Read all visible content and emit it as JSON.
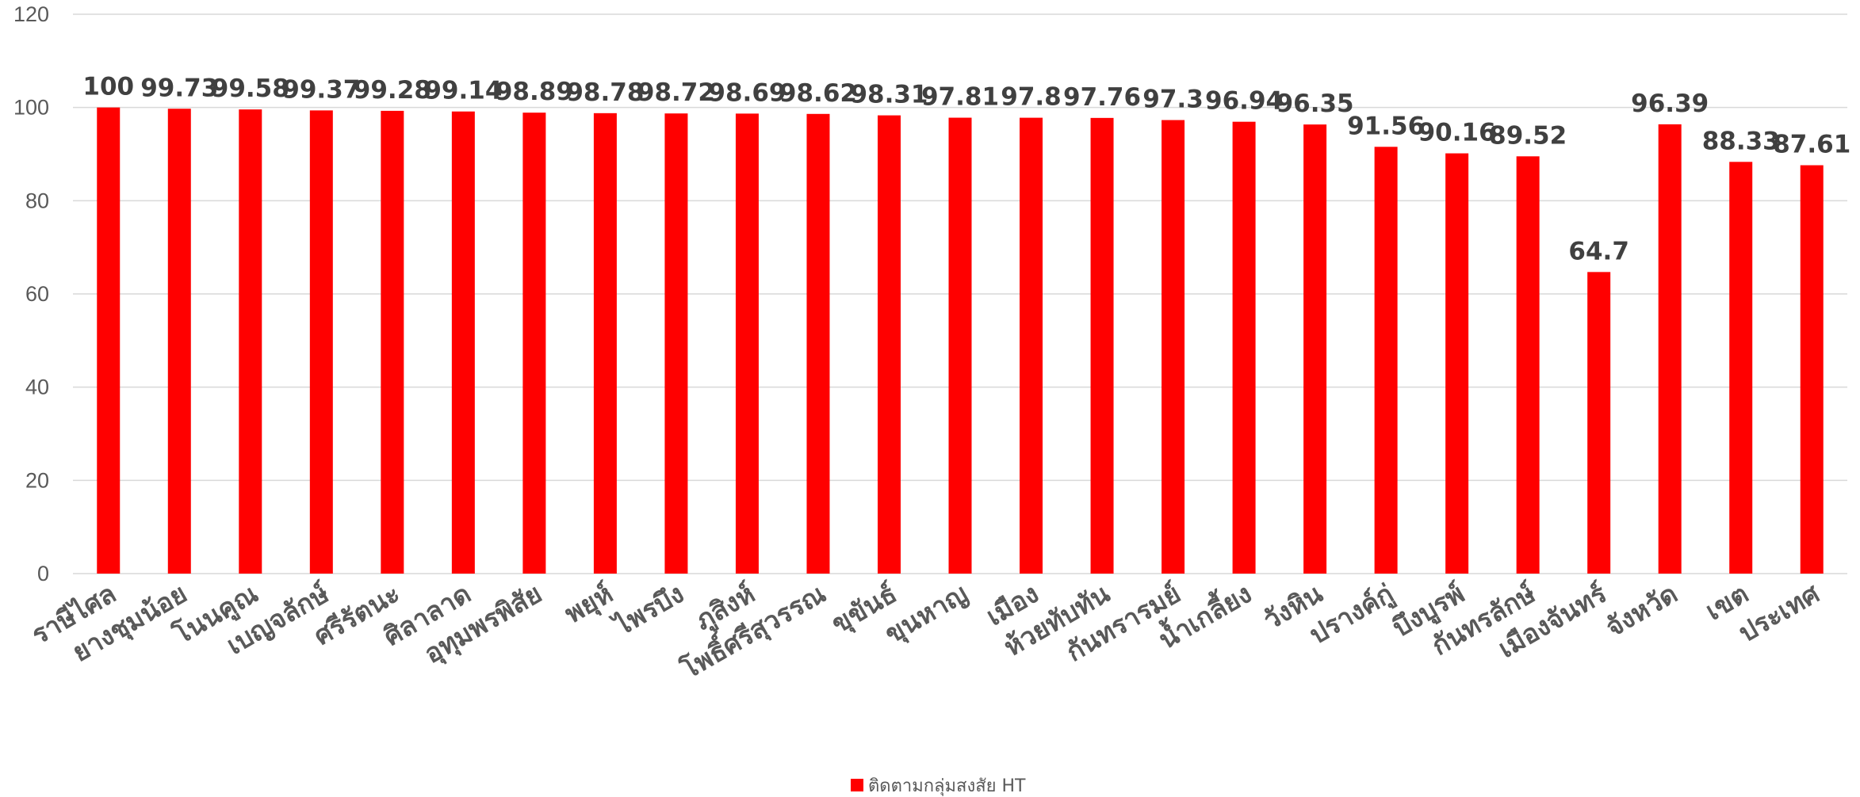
{
  "chart_data": {
    "type": "bar",
    "title": "",
    "xlabel": "",
    "ylabel": "",
    "ylim": [
      0,
      120
    ],
    "y_ticks": [
      0,
      20,
      40,
      60,
      80,
      100,
      120
    ],
    "grid": true,
    "legend_position": "bottom",
    "categories": [
      "ราษีไศล",
      "ยางชุมน้อย",
      "โนนคูณ",
      "เบญจลักษ์",
      "ศรีรัตนะ",
      "ศิลาลาด",
      "อุทุมพรพิสัย",
      "พยุห์",
      "ไพรบึง",
      "ภูสิงห์",
      "โพธิ์ศรีสุวรรณ",
      "ขุขันธ์",
      "ขุนหาญ",
      "เมือง",
      "ห้วยทับทัน",
      "กันทรารมย์",
      "น้ำเกลี้ยง",
      "วังหิน",
      "ปรางค์กู่",
      "บึงบูรพ์",
      "กันทรลักษ์",
      "เมืองจันทร์",
      "จังหวัด",
      "เขต",
      "ประเทศ"
    ],
    "series": [
      {
        "name": "ติดตามกลุ่มสงสัย HT",
        "color": "#ff0000",
        "values": [
          100,
          99.73,
          99.58,
          99.37,
          99.28,
          99.14,
          98.89,
          98.78,
          98.72,
          98.69,
          98.62,
          98.31,
          97.81,
          97.8,
          97.76,
          97.3,
          96.94,
          96.35,
          91.56,
          90.16,
          89.52,
          64.7,
          96.39,
          88.33,
          87.61
        ],
        "labels": [
          "100",
          "99.73",
          "99.58",
          "99.37",
          "99.28",
          "99.14",
          "98.89",
          "98.78",
          "98.72",
          "98.69",
          "98.62",
          "98.31",
          "97.81",
          "97.8",
          "97.76",
          "97.3",
          "96.94",
          "96.35",
          "91.56",
          "90.16",
          "89.52",
          "64.7",
          "96.39",
          "88.33",
          "87.61"
        ]
      }
    ]
  }
}
